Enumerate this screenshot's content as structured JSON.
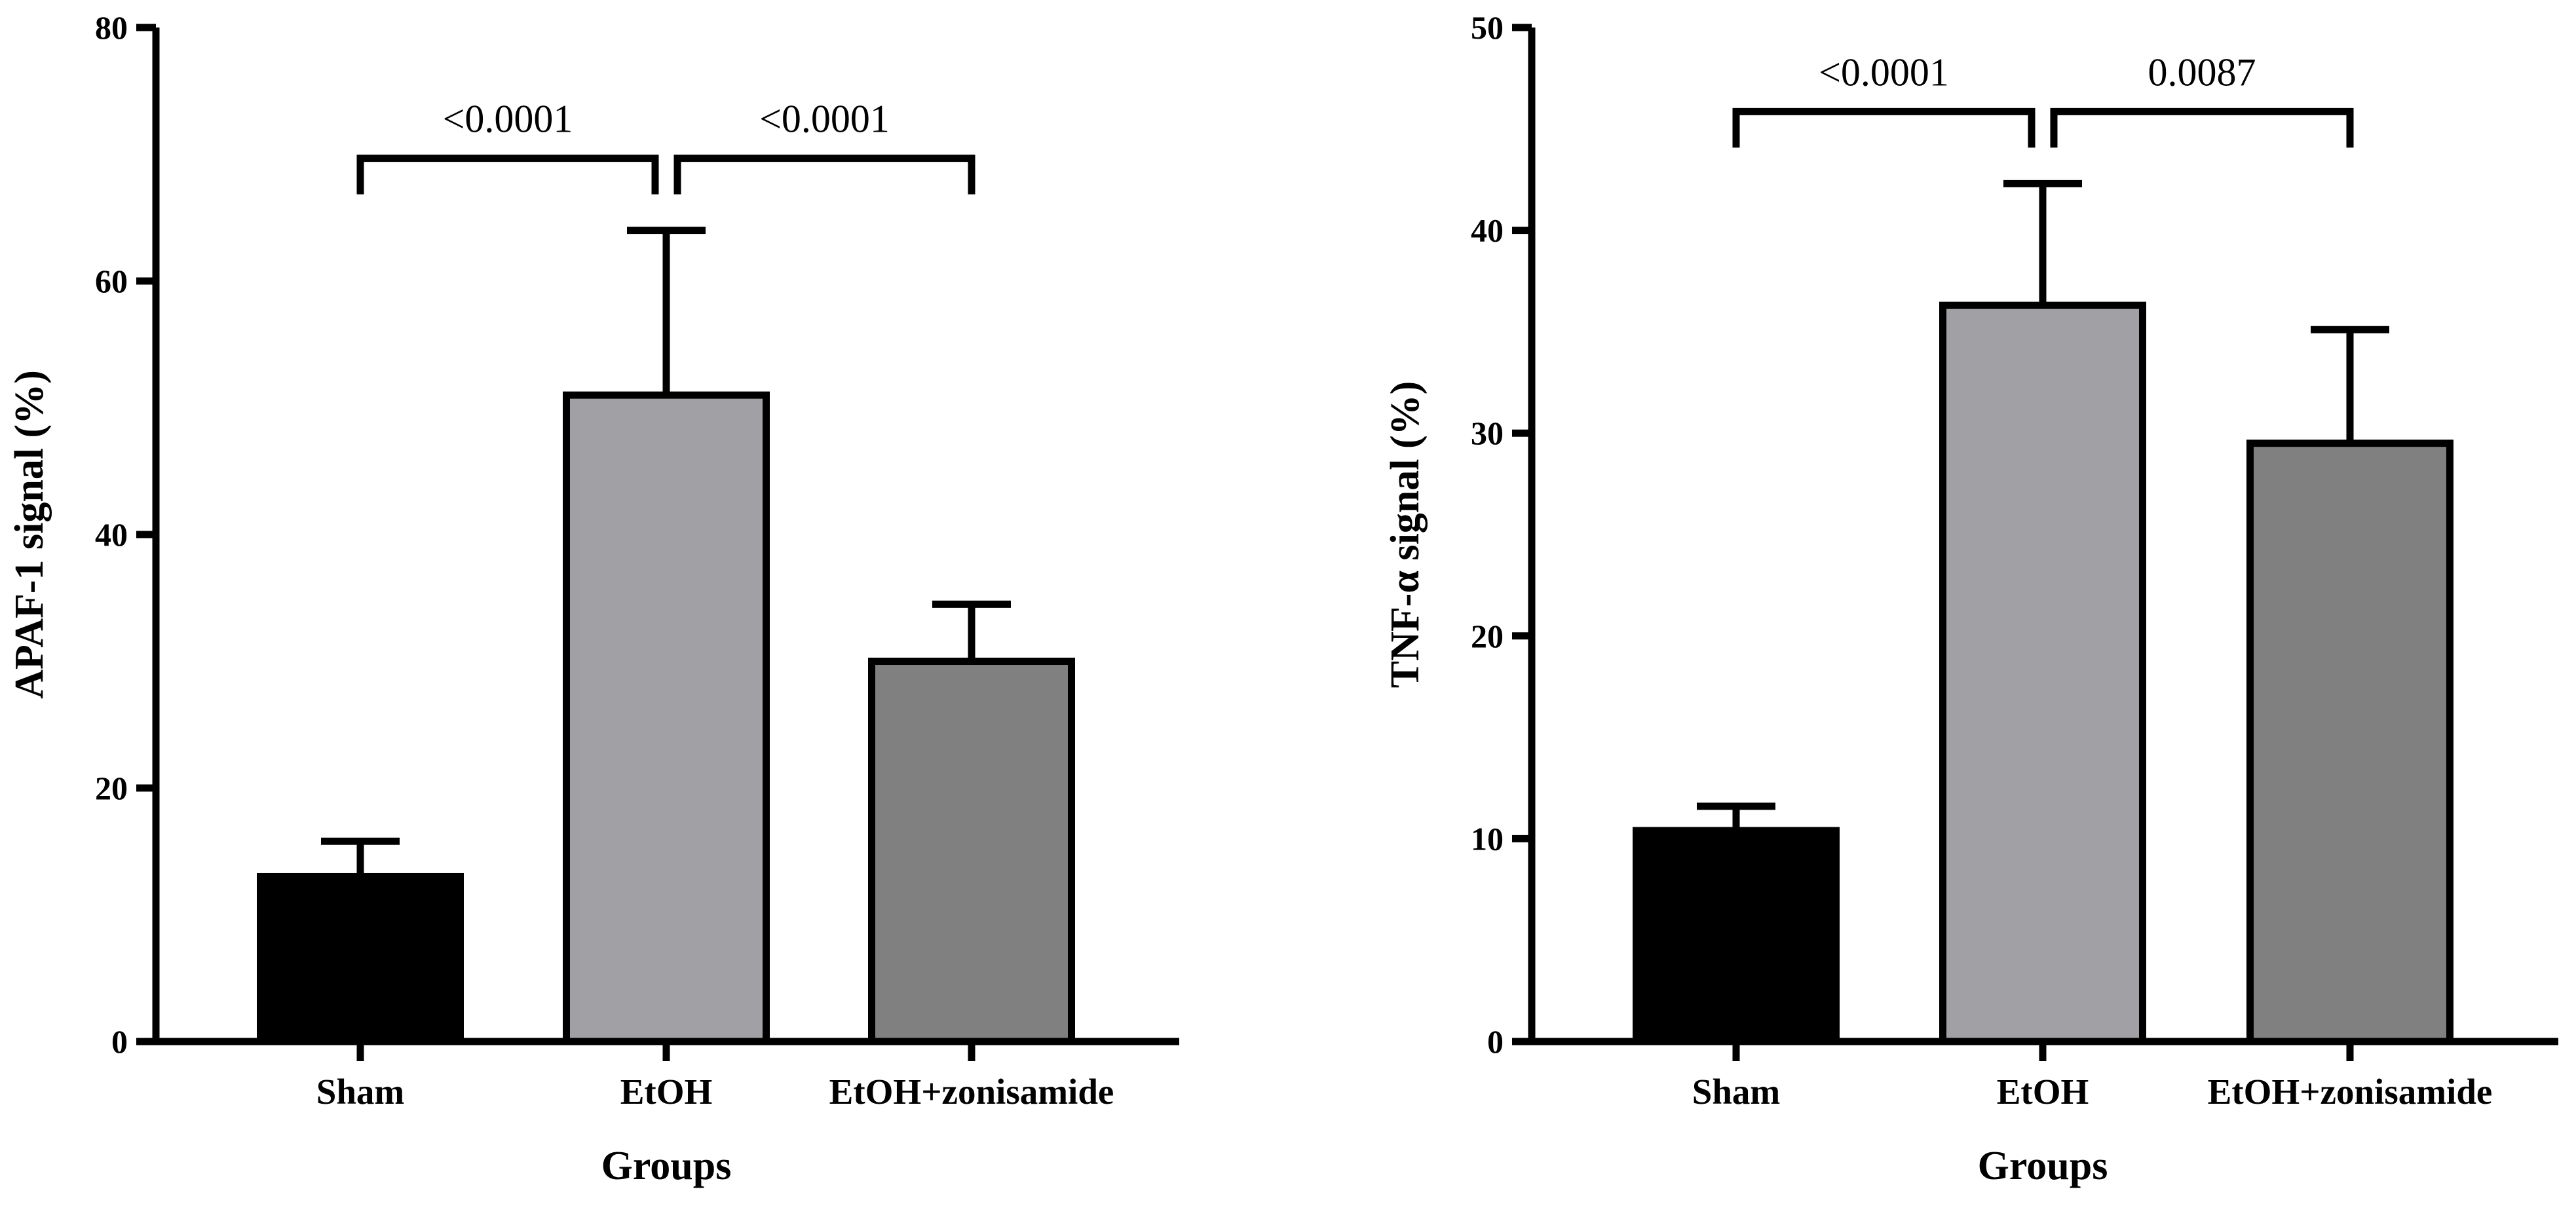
{
  "chart_data": [
    {
      "type": "bar",
      "title": "",
      "xlabel": "Groups",
      "ylabel": "APAF-1 signal (%)",
      "categories": [
        "Sham",
        "EtOH",
        "EtOH+zonisamide"
      ],
      "values": [
        13,
        51,
        30
      ],
      "error_upper": [
        15.8,
        64,
        34.5
      ],
      "ylim": [
        0,
        80
      ],
      "yticks": [
        0,
        20,
        40,
        60,
        80
      ],
      "bar_colors": [
        "#000000",
        "#a1a0a5",
        "#808080"
      ],
      "significance": [
        {
          "from": 0,
          "to": 1,
          "label": "<0.0001"
        },
        {
          "from": 1,
          "to": 2,
          "label": "<0.0001"
        }
      ],
      "grid": false
    },
    {
      "type": "bar",
      "title": "",
      "xlabel": "Groups",
      "ylabel": "TNF-α signal (%)",
      "categories": [
        "Sham",
        "EtOH",
        "EtOH+zonisamide"
      ],
      "values": [
        10.4,
        36.3,
        29.5
      ],
      "error_upper": [
        11.6,
        42.3,
        35.1
      ],
      "ylim": [
        0,
        50
      ],
      "yticks": [
        0,
        10,
        20,
        30,
        40,
        50
      ],
      "bar_colors": [
        "#000000",
        "#a1a0a5",
        "#808080"
      ],
      "significance": [
        {
          "from": 0,
          "to": 1,
          "label": "<0.0001"
        },
        {
          "from": 1,
          "to": 2,
          "label": "0.0087"
        }
      ],
      "grid": false
    }
  ]
}
